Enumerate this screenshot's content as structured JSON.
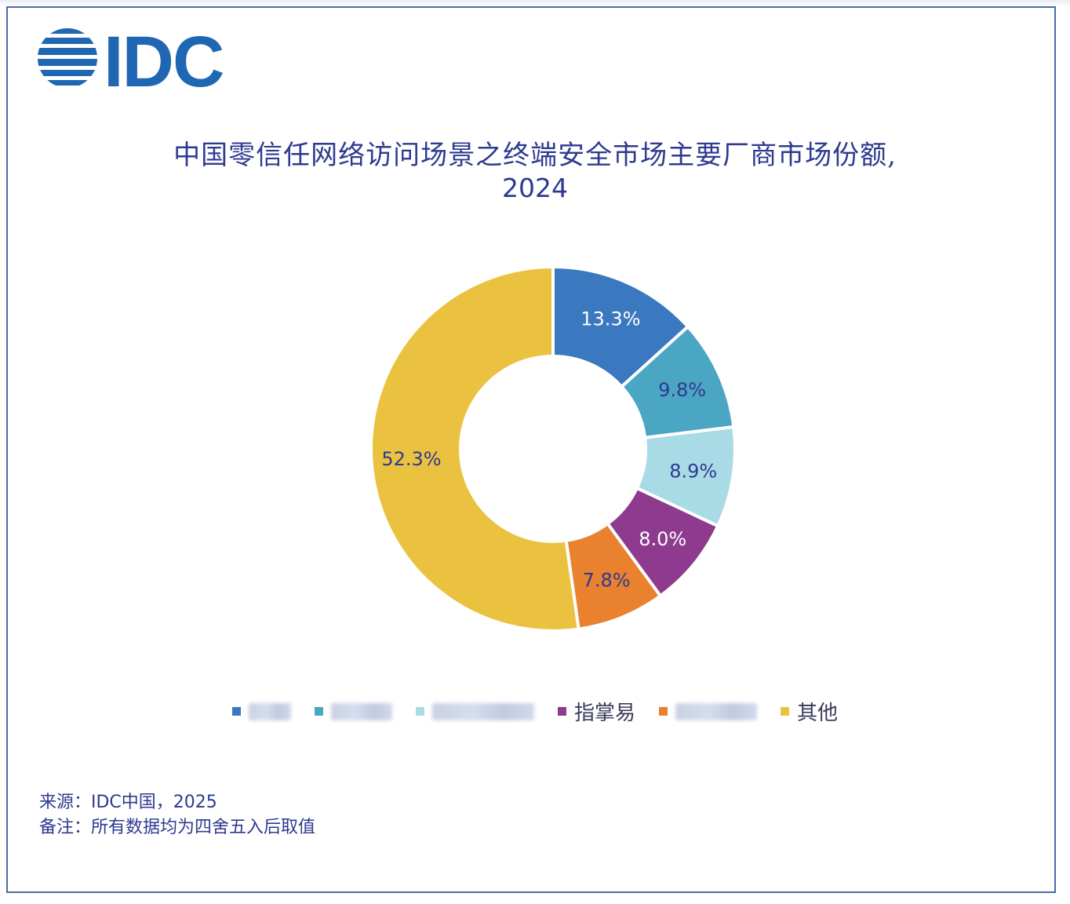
{
  "logo": {
    "text": "IDC",
    "color": "#1f66b3"
  },
  "title": {
    "line1": "中国零信任网络访问场景之终端安全市场主要厂商市场份额,",
    "line2": "2024"
  },
  "chart_data": {
    "type": "pie",
    "donut": true,
    "title": "中国零信任网络访问场景之终端安全市场主要厂商市场份额, 2024",
    "labels": [
      "",
      "",
      "",
      "指掌易",
      "",
      "其他"
    ],
    "values": [
      13.3,
      9.8,
      8.9,
      8.0,
      7.8,
      52.3
    ],
    "value_labels": [
      "13.3%",
      "9.8%",
      "8.9%",
      "8.0%",
      "7.8%",
      "52.3%"
    ],
    "colors": [
      "#3a79bf",
      "#4ba6c4",
      "#a9dbe7",
      "#8e3a8e",
      "#e9812f",
      "#eac240"
    ],
    "label_colors": [
      "#ffffff",
      "#2e3a8f",
      "#2e3a8f",
      "#ffffff",
      "#2e3a8f",
      "#2e3a8f"
    ],
    "legend_position": "bottom",
    "legend_blurred": [
      true,
      true,
      true,
      false,
      true,
      false
    ]
  },
  "footnotes": {
    "source": "来源：IDC中国，2025",
    "note": "备注：所有数据均为四舍五入后取值"
  }
}
